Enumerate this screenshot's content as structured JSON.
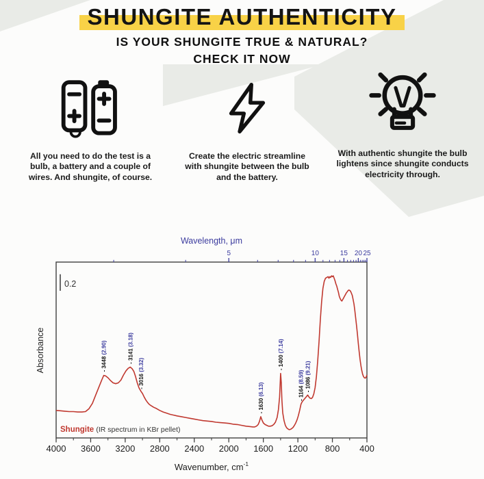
{
  "colors": {
    "background": "#fcfcfb",
    "decoration_gray": "#e9ebe7",
    "highlight_yellow": "#f8d247",
    "ink": "#141414",
    "spectrum_red": "#c0382f",
    "axis_blue": "#3b3b9e",
    "axis_dark": "#3f3f3f"
  },
  "header": {
    "title": "SHUNGITE AUTHENTICITY",
    "subtitle_line1": "IS YOUR SHUNGITE TRUE & NATURAL?",
    "subtitle_line2": "CHECK IT NOW"
  },
  "steps": [
    {
      "icon": "battery-icon",
      "text": "All you need to do the test is a bulb, a battery and a couple of wires. And shungite, of course."
    },
    {
      "icon": "lightning-icon",
      "text": "Create the electric streamline with shungite between the bulb and the battery."
    },
    {
      "icon": "bulb-icon",
      "text": "With authentic shungite the bulb lightens since shungite conducts electricity through."
    }
  ],
  "chart_data": {
    "type": "line",
    "series_name": "Shungite",
    "legend_note": "(IR spectrum in KBr pellet)",
    "legend_position": "bottom-left-inside",
    "ylabel": "Absorbance",
    "xlabel": "Wavenumber, cm",
    "xlabel_sup": "-1",
    "top_label": "Wavelength, μm",
    "grid": false,
    "ylim": [
      0,
      2.23
    ],
    "scale_bar": {
      "label": "0.2",
      "from_A": 1.87,
      "to_A": 2.08
    },
    "x_axis": {
      "max": 4000,
      "min": 400,
      "reversed": true,
      "major_ticks": [
        4000,
        3600,
        3200,
        2800,
        2400,
        2000,
        1600,
        1200,
        800,
        400
      ],
      "minor_ticks": [
        3800,
        3400,
        3000,
        2600,
        2200,
        1800,
        1400,
        1000,
        600
      ]
    },
    "top_axis": {
      "major_ticks": [
        5,
        10,
        15,
        20,
        25
      ],
      "minor_ticks": [
        3,
        4,
        6,
        7,
        8,
        9,
        11,
        12,
        13,
        14,
        16,
        17,
        18,
        19,
        21,
        22,
        23,
        24
      ]
    },
    "peaks": [
      {
        "wn": 3448,
        "um": "2.90",
        "labelA": 0.84
      },
      {
        "wn": 3141,
        "um": "3.18",
        "labelA": 0.94
      },
      {
        "wn": 3016,
        "um": "3.32",
        "labelA": 0.62
      },
      {
        "wn": 1630,
        "um": "6.13",
        "labelA": 0.31
      },
      {
        "wn": 1400,
        "um": "7.14",
        "labelA": 0.86
      },
      {
        "wn": 1164,
        "um": "8.59",
        "labelA": 0.47
      },
      {
        "wn": 1086,
        "um": "9.21",
        "labelA": 0.58
      }
    ],
    "points": [
      [
        4000,
        0.35
      ],
      [
        3950,
        0.345
      ],
      [
        3900,
        0.34
      ],
      [
        3850,
        0.335
      ],
      [
        3800,
        0.335
      ],
      [
        3750,
        0.33
      ],
      [
        3700,
        0.33
      ],
      [
        3660,
        0.335
      ],
      [
        3620,
        0.37
      ],
      [
        3580,
        0.44
      ],
      [
        3540,
        0.55
      ],
      [
        3500,
        0.66
      ],
      [
        3470,
        0.74
      ],
      [
        3448,
        0.795
      ],
      [
        3430,
        0.79
      ],
      [
        3400,
        0.765
      ],
      [
        3370,
        0.73
      ],
      [
        3340,
        0.7
      ],
      [
        3310,
        0.69
      ],
      [
        3280,
        0.7
      ],
      [
        3250,
        0.735
      ],
      [
        3220,
        0.8
      ],
      [
        3190,
        0.855
      ],
      [
        3165,
        0.885
      ],
      [
        3141,
        0.9
      ],
      [
        3120,
        0.88
      ],
      [
        3100,
        0.845
      ],
      [
        3080,
        0.78
      ],
      [
        3060,
        0.7
      ],
      [
        3040,
        0.635
      ],
      [
        3016,
        0.59
      ],
      [
        3000,
        0.565
      ],
      [
        2980,
        0.52
      ],
      [
        2960,
        0.48
      ],
      [
        2940,
        0.45
      ],
      [
        2920,
        0.425
      ],
      [
        2900,
        0.41
      ],
      [
        2870,
        0.39
      ],
      [
        2840,
        0.375
      ],
      [
        2800,
        0.35
      ],
      [
        2760,
        0.33
      ],
      [
        2720,
        0.315
      ],
      [
        2680,
        0.3
      ],
      [
        2640,
        0.29
      ],
      [
        2600,
        0.28
      ],
      [
        2550,
        0.27
      ],
      [
        2500,
        0.26
      ],
      [
        2450,
        0.25
      ],
      [
        2400,
        0.24
      ],
      [
        2350,
        0.23
      ],
      [
        2300,
        0.22
      ],
      [
        2250,
        0.215
      ],
      [
        2200,
        0.21
      ],
      [
        2150,
        0.2
      ],
      [
        2100,
        0.195
      ],
      [
        2050,
        0.19
      ],
      [
        2000,
        0.185
      ],
      [
        1950,
        0.175
      ],
      [
        1900,
        0.17
      ],
      [
        1850,
        0.16
      ],
      [
        1800,
        0.15
      ],
      [
        1760,
        0.145
      ],
      [
        1720,
        0.14
      ],
      [
        1700,
        0.14
      ],
      [
        1680,
        0.15
      ],
      [
        1660,
        0.17
      ],
      [
        1645,
        0.21
      ],
      [
        1630,
        0.27
      ],
      [
        1615,
        0.225
      ],
      [
        1600,
        0.19
      ],
      [
        1580,
        0.17
      ],
      [
        1560,
        0.16
      ],
      [
        1540,
        0.15
      ],
      [
        1520,
        0.15
      ],
      [
        1500,
        0.155
      ],
      [
        1480,
        0.17
      ],
      [
        1460,
        0.2
      ],
      [
        1440,
        0.26
      ],
      [
        1425,
        0.36
      ],
      [
        1412,
        0.52
      ],
      [
        1400,
        0.82
      ],
      [
        1392,
        0.7
      ],
      [
        1385,
        0.48
      ],
      [
        1375,
        0.32
      ],
      [
        1360,
        0.22
      ],
      [
        1345,
        0.16
      ],
      [
        1330,
        0.13
      ],
      [
        1315,
        0.115
      ],
      [
        1300,
        0.105
      ],
      [
        1285,
        0.11
      ],
      [
        1270,
        0.12
      ],
      [
        1255,
        0.135
      ],
      [
        1240,
        0.16
      ],
      [
        1225,
        0.19
      ],
      [
        1210,
        0.23
      ],
      [
        1195,
        0.28
      ],
      [
        1180,
        0.345
      ],
      [
        1164,
        0.43
      ],
      [
        1150,
        0.46
      ],
      [
        1135,
        0.48
      ],
      [
        1120,
        0.5
      ],
      [
        1105,
        0.52
      ],
      [
        1086,
        0.545
      ],
      [
        1075,
        0.525
      ],
      [
        1060,
        0.505
      ],
      [
        1045,
        0.5
      ],
      [
        1030,
        0.515
      ],
      [
        1015,
        0.56
      ],
      [
        1000,
        0.64
      ],
      [
        985,
        0.78
      ],
      [
        970,
        0.98
      ],
      [
        955,
        1.22
      ],
      [
        940,
        1.5
      ],
      [
        925,
        1.73
      ],
      [
        910,
        1.9
      ],
      [
        895,
        1.99
      ],
      [
        880,
        2.03
      ],
      [
        865,
        2.04
      ],
      [
        850,
        2.05
      ],
      [
        840,
        2.03
      ],
      [
        830,
        2.05
      ],
      [
        820,
        2.04
      ],
      [
        810,
        2.06
      ],
      [
        800,
        2.05
      ],
      [
        790,
        2.06
      ],
      [
        780,
        2.03
      ],
      [
        770,
        2.0
      ],
      [
        760,
        1.96
      ],
      [
        750,
        1.93
      ],
      [
        740,
        1.89
      ],
      [
        730,
        1.85
      ],
      [
        720,
        1.8
      ],
      [
        710,
        1.77
      ],
      [
        700,
        1.75
      ],
      [
        690,
        1.74
      ],
      [
        680,
        1.76
      ],
      [
        670,
        1.78
      ],
      [
        660,
        1.8
      ],
      [
        650,
        1.82
      ],
      [
        640,
        1.84
      ],
      [
        630,
        1.855
      ],
      [
        620,
        1.87
      ],
      [
        610,
        1.88
      ],
      [
        600,
        1.875
      ],
      [
        590,
        1.865
      ],
      [
        580,
        1.84
      ],
      [
        570,
        1.81
      ],
      [
        560,
        1.76
      ],
      [
        550,
        1.7
      ],
      [
        540,
        1.62
      ],
      [
        530,
        1.52
      ],
      [
        520,
        1.42
      ],
      [
        510,
        1.32
      ],
      [
        500,
        1.2
      ],
      [
        490,
        1.1
      ],
      [
        480,
        1.0
      ],
      [
        470,
        0.92
      ],
      [
        460,
        0.86
      ],
      [
        450,
        0.81
      ],
      [
        440,
        0.78
      ],
      [
        430,
        0.765
      ],
      [
        420,
        0.76
      ],
      [
        410,
        0.77
      ],
      [
        400,
        0.8
      ]
    ]
  }
}
